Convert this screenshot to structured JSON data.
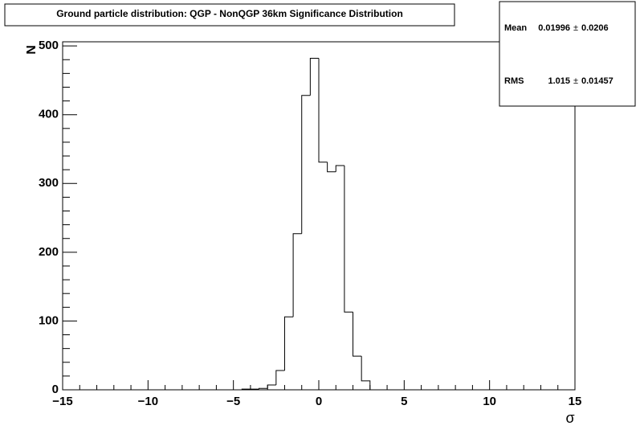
{
  "chart_data": {
    "type": "histogram",
    "title": "Ground particle distribution: QGP - NonQGP 36km Significance Distribution",
    "x_label": "σ",
    "y_label": "N",
    "bins": [
      -4.5,
      -4.0,
      -3.5,
      -3.0,
      -2.5,
      -2.0,
      -1.5,
      -1.0,
      -0.5,
      0,
      0.5,
      1.0,
      1.5,
      2.0,
      2.5,
      3.0
    ],
    "counts": [
      1,
      1,
      2,
      7,
      28,
      106,
      227,
      428,
      482,
      331,
      317,
      326,
      113,
      49,
      13
    ],
    "color": "#000000",
    "xlim": [
      -15,
      15
    ],
    "xticks": [
      {
        "value": -15,
        "label": "−15"
      },
      {
        "value": -10,
        "label": "−10"
      },
      {
        "value": -5,
        "label": "−5"
      },
      0,
      5,
      10,
      15
    ],
    "ylim": [
      0,
      506
    ],
    "yticks": [
      0,
      100,
      200,
      300,
      400,
      500
    ],
    "stats": [
      {
        "name": "Mean",
        "value": 0.01996,
        "error": 0.0206
      },
      {
        "name": "RMS",
        "value": 1.015,
        "error": 0.01457
      }
    ],
    "stats_separator": "±"
  }
}
